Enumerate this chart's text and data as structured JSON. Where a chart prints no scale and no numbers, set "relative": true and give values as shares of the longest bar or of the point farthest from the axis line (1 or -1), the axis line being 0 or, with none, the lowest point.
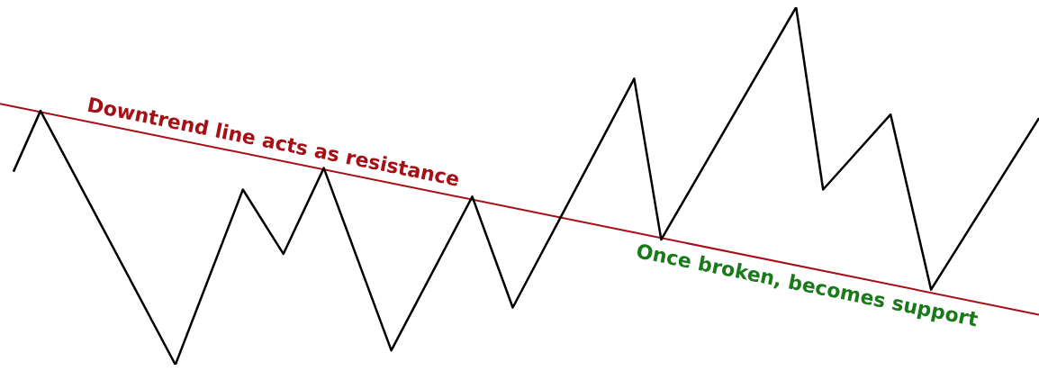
{
  "chart_data": {
    "type": "line",
    "relative": true,
    "legend": false,
    "marker": "none",
    "line_style": "solid",
    "categories": [
      null,
      null,
      null,
      null,
      null,
      null,
      null,
      null,
      null,
      null,
      null,
      null,
      null,
      null,
      null,
      null,
      null,
      null,
      null,
      null,
      null,
      null,
      null,
      null,
      null,
      null,
      null,
      null,
      null,
      null,
      null,
      null,
      null,
      null,
      null,
      null,
      null,
      null,
      null,
      null,
      null,
      null,
      null,
      null,
      null,
      null,
      null,
      null,
      null,
      null,
      null,
      null,
      null,
      null,
      null,
      null,
      null,
      null,
      null,
      null,
      null,
      null,
      null,
      null,
      null,
      null,
      null,
      null,
      null,
      null,
      null,
      null,
      null,
      null,
      null,
      null,
      null,
      null
    ],
    "series": [
      {
        "color": "#000000",
        "values": [
          null,
          0.54,
          null,
          0.71,
          null,
          null,
          null,
          null,
          null,
          null,
          null,
          null,
          null,
          0,
          null,
          null,
          null,
          null,
          0.49,
          null,
          null,
          0.31,
          null,
          null,
          0.55,
          null,
          null,
          null,
          null,
          0.04,
          null,
          null,
          null,
          null,
          null,
          0.47,
          null,
          null,
          0.16,
          null,
          null,
          null,
          null,
          null,
          null,
          null,
          null,
          0.8,
          null,
          0.35,
          null,
          null,
          null,
          null,
          null,
          null,
          null,
          null,
          null,
          1,
          null,
          0.49,
          null,
          null,
          null,
          null,
          0.7,
          null,
          null,
          0.21,
          null,
          null,
          null,
          null,
          null,
          null,
          null,
          0.69
        ]
      },
      {
        "color": "#a50f15",
        "values": [
          0.73,
          null,
          null,
          null,
          null,
          null,
          null,
          null,
          null,
          null,
          null,
          null,
          null,
          null,
          null,
          null,
          null,
          null,
          null,
          null,
          null,
          null,
          null,
          null,
          null,
          null,
          null,
          null,
          null,
          null,
          null,
          null,
          null,
          null,
          null,
          null,
          null,
          null,
          null,
          null,
          null,
          null,
          null,
          null,
          null,
          null,
          null,
          null,
          null,
          null,
          null,
          null,
          null,
          null,
          null,
          null,
          null,
          null,
          null,
          null,
          null,
          null,
          null,
          null,
          null,
          null,
          null,
          null,
          null,
          null,
          null,
          null,
          null,
          null,
          null,
          null,
          null,
          0.14
        ]
      }
    ],
    "annotations": [
      "Downtrend line acts as resistance",
      "Once broken, becomes support"
    ]
  }
}
